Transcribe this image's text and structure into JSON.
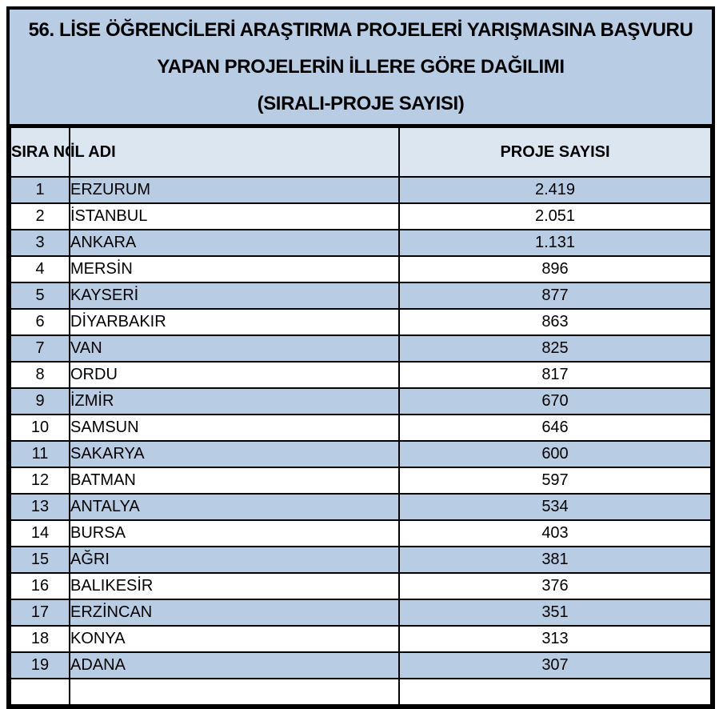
{
  "title": {
    "lines": [
      "56. LİSE ÖĞRENCİLERİ ARAŞTIRMA PROJELERİ YARIŞMASINA BAŞVURU",
      "YAPAN PROJELERİN İLLERE GÖRE DAĞILIMI",
      "(SIRALI-PROJE SAYISI)"
    ]
  },
  "table": {
    "columns": [
      "SIRA NO",
      "İL ADI",
      "PROJE SAYISI"
    ],
    "rows": [
      {
        "no": "1",
        "il": "ERZURUM",
        "sayi": "2.419"
      },
      {
        "no": "2",
        "il": "İSTANBUL",
        "sayi": "2.051"
      },
      {
        "no": "3",
        "il": "ANKARA",
        "sayi": "1.131"
      },
      {
        "no": "4",
        "il": "MERSİN",
        "sayi": "896"
      },
      {
        "no": "5",
        "il": "KAYSERİ",
        "sayi": "877"
      },
      {
        "no": "6",
        "il": "DİYARBAKIR",
        "sayi": "863"
      },
      {
        "no": "7",
        "il": "VAN",
        "sayi": "825"
      },
      {
        "no": "8",
        "il": "ORDU",
        "sayi": "817"
      },
      {
        "no": "9",
        "il": "İZMİR",
        "sayi": "670"
      },
      {
        "no": "10",
        "il": "SAMSUN",
        "sayi": "646"
      },
      {
        "no": "11",
        "il": "SAKARYA",
        "sayi": "600"
      },
      {
        "no": "12",
        "il": "BATMAN",
        "sayi": "597"
      },
      {
        "no": "13",
        "il": "ANTALYA",
        "sayi": "534"
      },
      {
        "no": "14",
        "il": "BURSA",
        "sayi": "403"
      },
      {
        "no": "15",
        "il": "AĞRI",
        "sayi": "381"
      },
      {
        "no": "16",
        "il": "BALIKESİR",
        "sayi": "376"
      },
      {
        "no": "17",
        "il": "ERZİNCAN",
        "sayi": "351"
      },
      {
        "no": "18",
        "il": "KONYA",
        "sayi": "313"
      },
      {
        "no": "19",
        "il": "ADANA",
        "sayi": "307"
      }
    ],
    "partial_row": {
      "no": "",
      "il": "",
      "sayi": ""
    }
  },
  "colors": {
    "title_bg": "#b8cce4",
    "header_bg": "#dce6f1",
    "band_bg": "#b8cce4",
    "row_bg": "#ffffff",
    "border": "#000000",
    "text": "#000000"
  }
}
